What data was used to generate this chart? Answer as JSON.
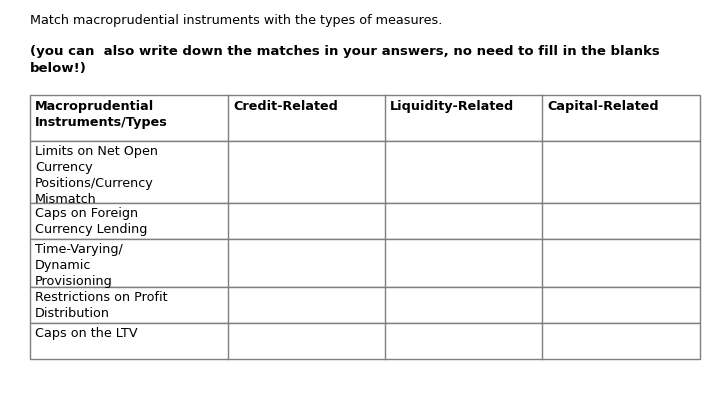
{
  "title": "Match macroprudential instruments with the types of measures.",
  "subtitle": "(you can  also write down the matches in your answers, no need to fill in the blanks\nbelow!)",
  "col_headers": [
    "Macroprudential\nInstruments/Types",
    "Credit-Related",
    "Liquidity-Related",
    "Capital-Related"
  ],
  "rows": [
    "Limits on Net Open\nCurrency\nPositions/Currency\nMismatch",
    "Caps on Foreign\nCurrency Lending",
    "Time-Varying/\nDynamic\nProvisioning",
    "Restrictions on Profit\nDistribution",
    "Caps on the LTV"
  ],
  "bg_color": "#ffffff",
  "border_color": "#7f7f7f",
  "text_color": "#000000",
  "font_size_title": 9.2,
  "font_size_subtitle": 9.5,
  "font_size_table": 9.2,
  "fig_width": 7.18,
  "fig_height": 3.98,
  "dpi": 100
}
